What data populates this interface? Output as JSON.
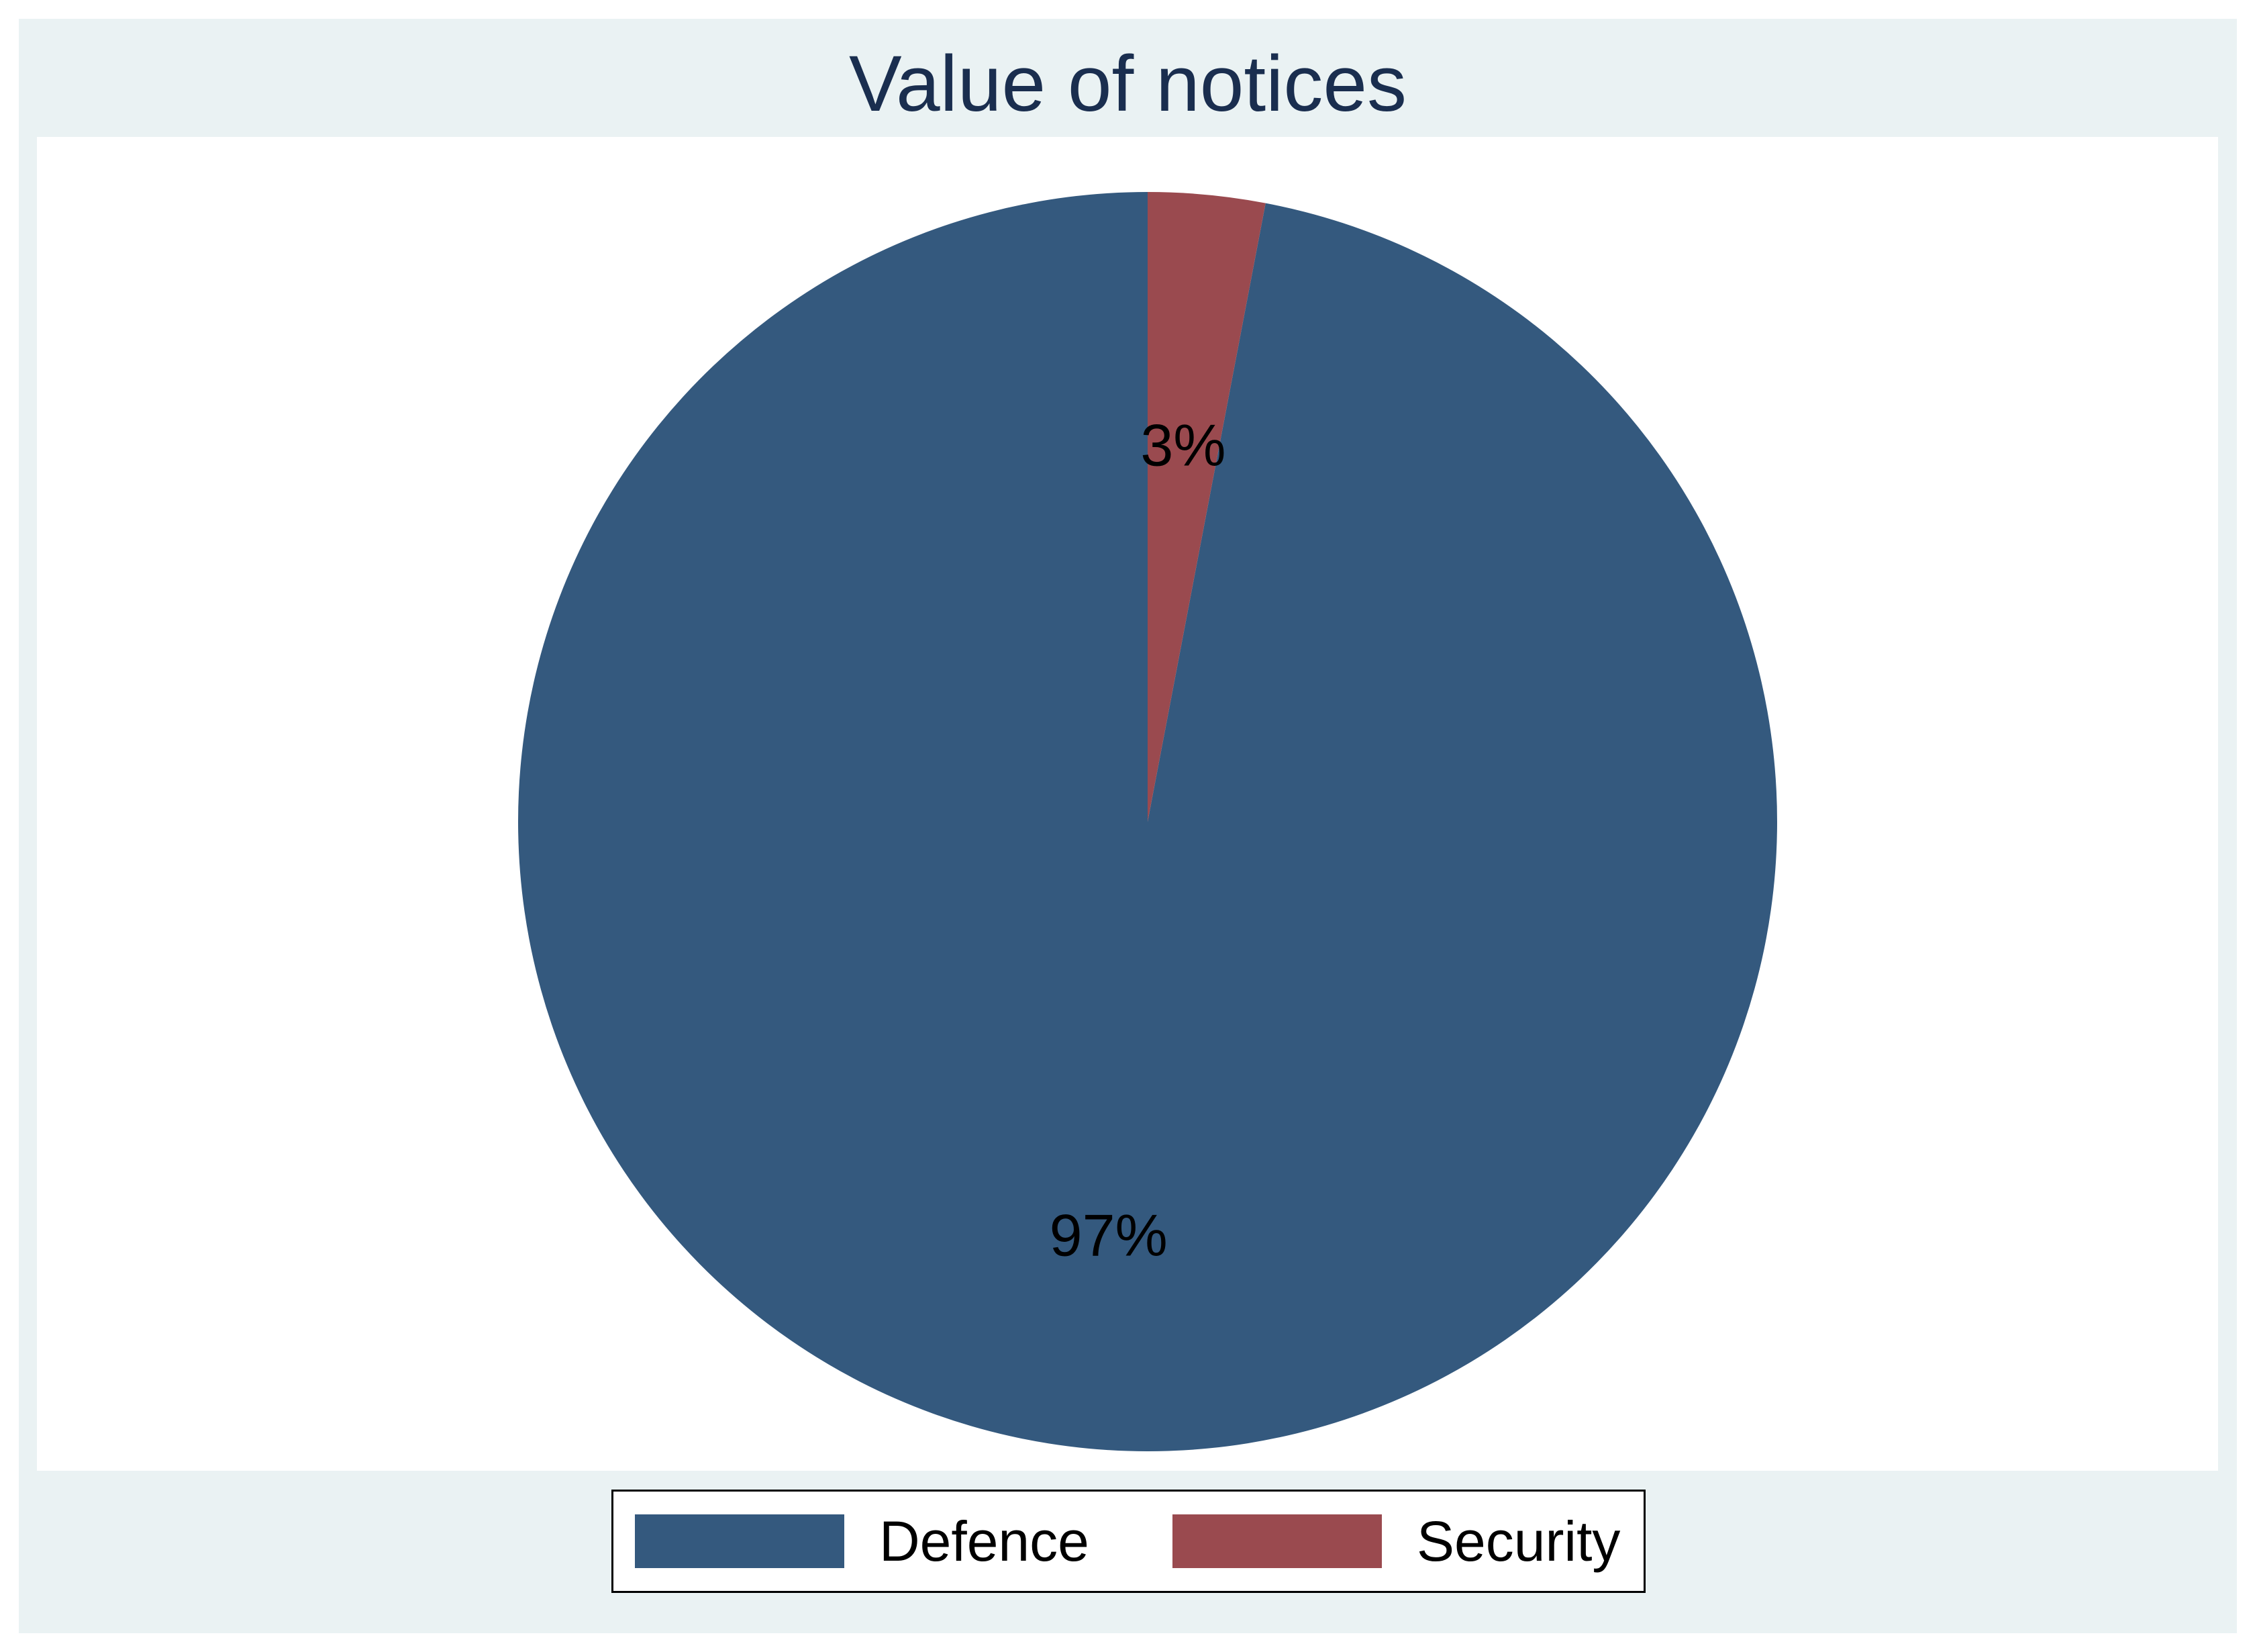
{
  "chart_data": {
    "type": "pie",
    "title": "Value of notices",
    "slices": [
      {
        "name": "Defence",
        "value": 97,
        "label": "97%",
        "color": "#34597e"
      },
      {
        "name": "Security",
        "value": 3,
        "label": "3%",
        "color": "#9a4a4f"
      }
    ],
    "start_direction": "12 o'clock, counter-clockwise",
    "legend_placement": "bottom"
  },
  "colors": {
    "frame_background": "#eaf2f3",
    "plot_background": "#ffffff",
    "title_color": "#1a2e4f"
  }
}
